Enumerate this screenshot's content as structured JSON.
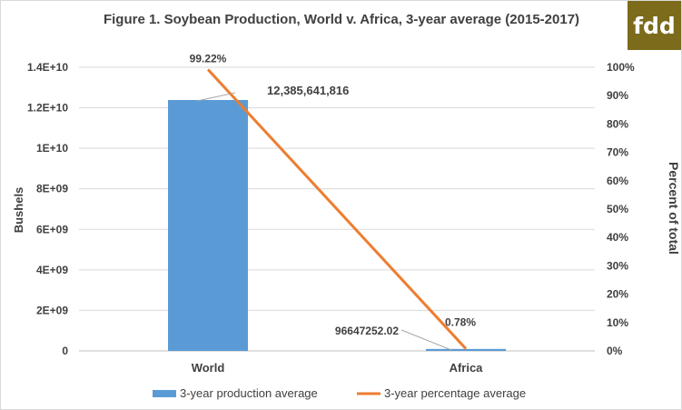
{
  "logo": {
    "text": "fdd",
    "background": "#7b6b1a"
  },
  "chart_data": {
    "type": "bar",
    "title": "Figure 1. Soybean Production, World v. Africa, 3-year average (2015-2017)",
    "categories": [
      "World",
      "Africa"
    ],
    "y_left": {
      "label": "Bushels",
      "range": [
        0,
        14000000000
      ],
      "ticks": [
        {
          "value": 0,
          "label": "0"
        },
        {
          "value": 2000000000,
          "label": "2E+09"
        },
        {
          "value": 4000000000,
          "label": "4E+09"
        },
        {
          "value": 6000000000,
          "label": "6E+09"
        },
        {
          "value": 8000000000,
          "label": "8E+09"
        },
        {
          "value": 10000000000,
          "label": "1E+10"
        },
        {
          "value": 12000000000,
          "label": "1.2E+10"
        },
        {
          "value": 14000000000,
          "label": "1.4E+10"
        }
      ]
    },
    "y_right": {
      "label": "Percent of total",
      "range": [
        0,
        100
      ],
      "ticks": [
        {
          "value": 0,
          "label": "0%"
        },
        {
          "value": 10,
          "label": "10%"
        },
        {
          "value": 20,
          "label": "20%"
        },
        {
          "value": 30,
          "label": "30%"
        },
        {
          "value": 40,
          "label": "40%"
        },
        {
          "value": 50,
          "label": "50%"
        },
        {
          "value": 60,
          "label": "60%"
        },
        {
          "value": 70,
          "label": "70%"
        },
        {
          "value": 80,
          "label": "80%"
        },
        {
          "value": 90,
          "label": "90%"
        },
        {
          "value": 100,
          "label": "100%"
        }
      ]
    },
    "series": [
      {
        "name": "3-year production average",
        "kind": "bar",
        "axis": "left",
        "color": "#5b9bd5",
        "values": [
          12385641816,
          96647252.02
        ],
        "labels": [
          "12,385,641,816",
          "96647252.02"
        ]
      },
      {
        "name": "3-year percentage average",
        "kind": "line",
        "axis": "right",
        "color": "#ed7d31",
        "values": [
          99.22,
          0.78
        ],
        "labels": [
          "99.22%",
          "0.78%"
        ]
      }
    ],
    "grid": true,
    "legend_position": "bottom"
  }
}
